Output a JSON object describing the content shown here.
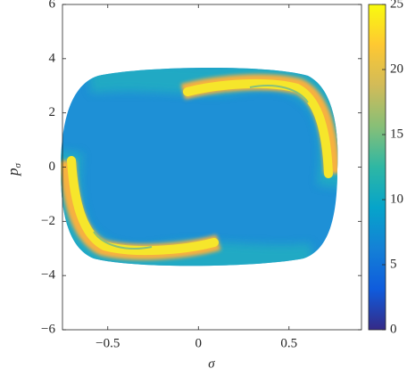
{
  "chart_data": {
    "type": "contour",
    "xlabel": "σ",
    "ylabel": {
      "text": "p",
      "subscript": "σ"
    },
    "xlim": [
      -0.75,
      0.9
    ],
    "xticks": [
      -0.5,
      0,
      0.5
    ],
    "ylim": [
      -6,
      6
    ],
    "yticks": [
      -6,
      -4,
      -2,
      0,
      2,
      4,
      6
    ],
    "colorbar": {
      "lim": [
        0,
        25
      ],
      "ticks": [
        0,
        5,
        10,
        15,
        20,
        25
      ]
    },
    "colormap": [
      "#352a87",
      "#0f5cdd",
      "#1481d6",
      "#06a4ca",
      "#2eb7a4",
      "#87bf77",
      "#d1bb59",
      "#fec832",
      "#f9fb0e"
    ]
  }
}
